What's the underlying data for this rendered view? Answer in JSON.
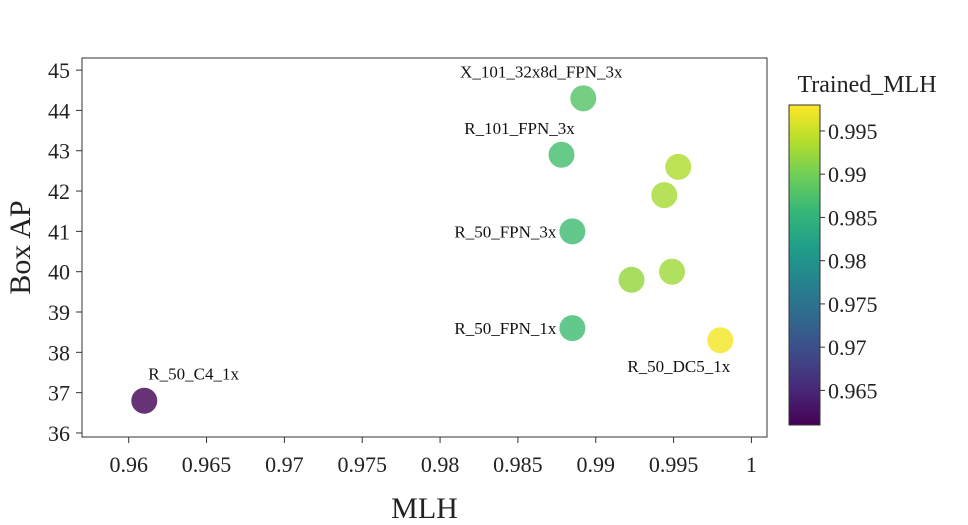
{
  "chart_data": {
    "type": "scatter",
    "xlabel": "MLH",
    "ylabel": "Box AP",
    "xlim": [
      0.957,
      1.001
    ],
    "ylim": [
      35.9,
      45.3
    ],
    "xticks": [
      0.96,
      0.965,
      0.97,
      0.975,
      0.98,
      0.985,
      0.99,
      0.995,
      1
    ],
    "xtick_labels": [
      "0.96",
      "0.965",
      "0.97",
      "0.975",
      "0.98",
      "0.985",
      "0.99",
      "0.995",
      "1"
    ],
    "yticks": [
      36,
      37,
      38,
      39,
      40,
      41,
      42,
      43,
      44,
      45
    ],
    "ytick_labels": [
      "36",
      "37",
      "38",
      "39",
      "40",
      "41",
      "42",
      "43",
      "44",
      "45"
    ],
    "grid": false,
    "colorbar": {
      "title": "Trained_MLH",
      "colormap": "viridis",
      "range": [
        0.961,
        0.998
      ],
      "ticks": [
        0.965,
        0.97,
        0.975,
        0.98,
        0.985,
        0.99,
        0.995
      ],
      "tick_labels": [
        "0.965",
        "0.97",
        "0.975",
        "0.98",
        "0.985",
        "0.99",
        "0.995"
      ]
    },
    "points": [
      {
        "x": 0.961,
        "y": 36.8,
        "c": 0.9615,
        "label": "R_50_C4_1x"
      },
      {
        "x": 0.9885,
        "y": 38.6,
        "c": 0.9865,
        "label": "R_50_FPN_1x"
      },
      {
        "x": 0.9885,
        "y": 41.0,
        "c": 0.9865,
        "label": "R_50_FPN_3x"
      },
      {
        "x": 0.9878,
        "y": 42.9,
        "c": 0.987,
        "label": "R_101_FPN_3x"
      },
      {
        "x": 0.9892,
        "y": 44.3,
        "c": 0.988,
        "label": "X_101_32x8d_FPN_3x"
      },
      {
        "x": 0.998,
        "y": 38.3,
        "c": 0.9975,
        "label": "R_50_DC5_1x"
      },
      {
        "x": 0.9923,
        "y": 39.8,
        "c": 0.992,
        "label": ""
      },
      {
        "x": 0.9949,
        "y": 40.0,
        "c": 0.9925,
        "label": ""
      },
      {
        "x": 0.9944,
        "y": 41.9,
        "c": 0.993,
        "label": ""
      },
      {
        "x": 0.9953,
        "y": 42.6,
        "c": 0.9935,
        "label": ""
      }
    ]
  }
}
